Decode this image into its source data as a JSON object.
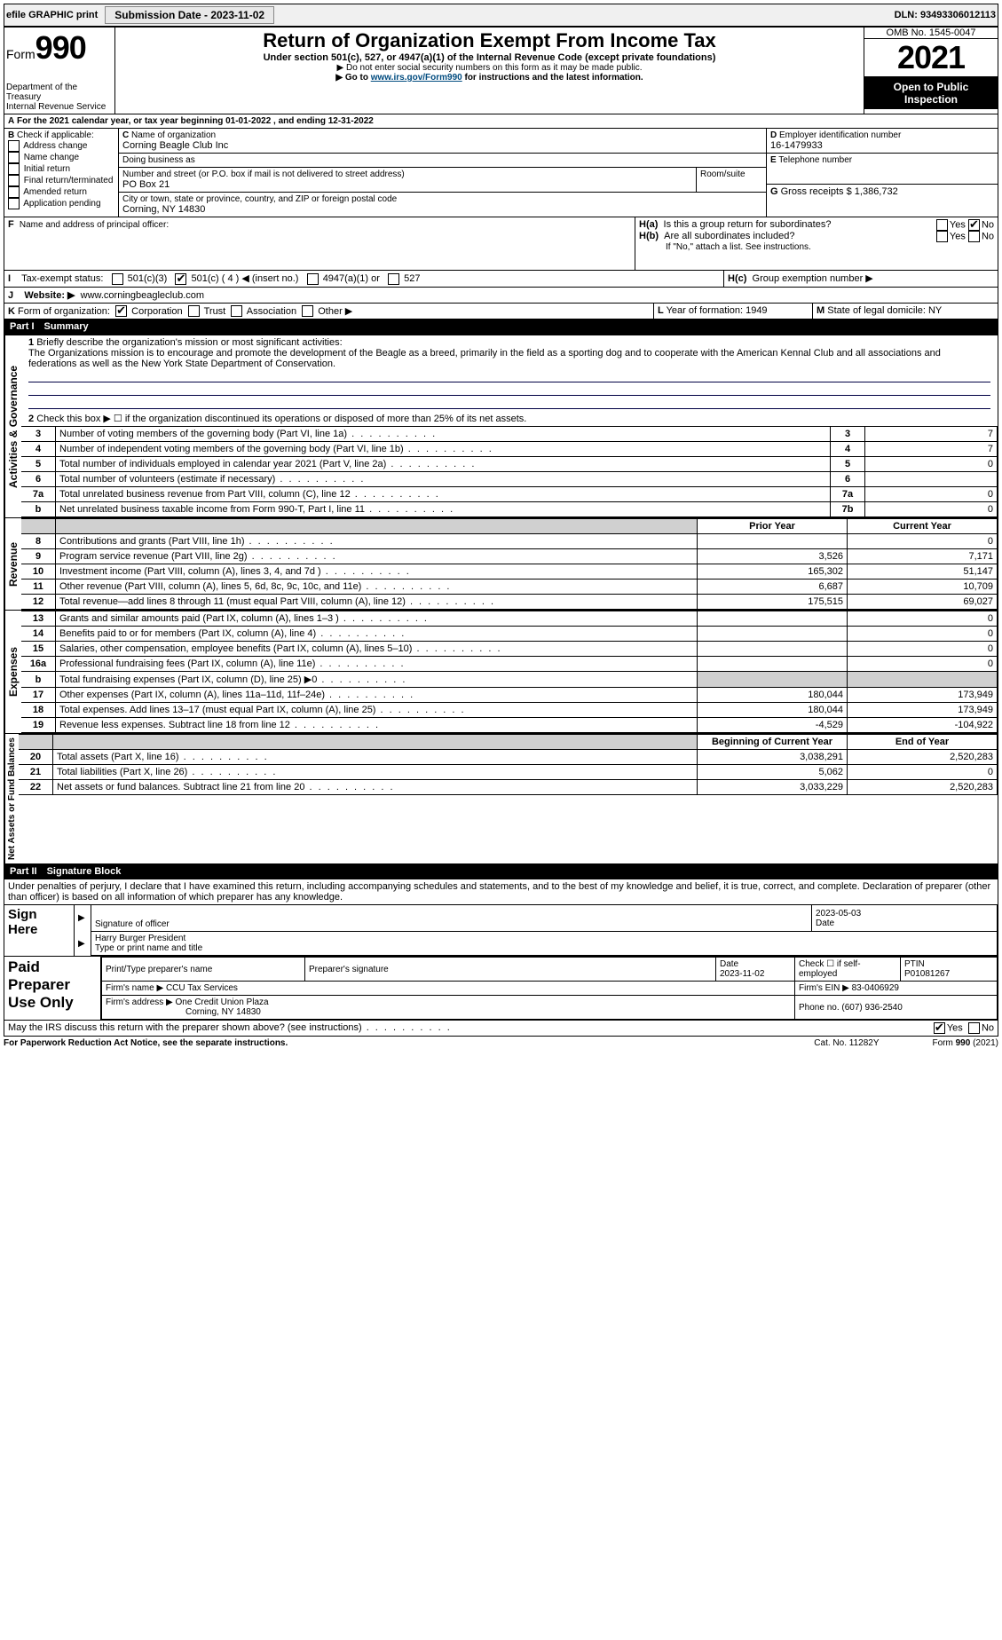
{
  "topbar": {
    "efile_label": "efile GRAPHIC print",
    "submission_label": "Submission Date - 2023-11-02",
    "dln_label": "DLN: 93493306012113"
  },
  "header": {
    "form_word": "Form",
    "form_num": "990",
    "title": "Return of Organization Exempt From Income Tax",
    "subtitle": "Under section 501(c), 527, or 4947(a)(1) of the Internal Revenue Code (except private foundations)",
    "note1": "▶ Do not enter social security numbers on this form as it may be made public.",
    "note2_pre": "▶ Go to ",
    "note2_link": "www.irs.gov/Form990",
    "note2_post": " for instructions and the latest information.",
    "dept": "Department of the Treasury\nInternal Revenue Service",
    "omb": "OMB No. 1545-0047",
    "year": "2021",
    "open": "Open to Public Inspection"
  },
  "A": {
    "text": "For the 2021 calendar year, or tax year beginning 01-01-2022   , and ending 12-31-2022"
  },
  "B": {
    "label": "Check if applicable:",
    "opts": [
      "Address change",
      "Name change",
      "Initial return",
      "Final return/terminated",
      "Amended return",
      "Application pending"
    ]
  },
  "C": {
    "name_label": "Name of organization",
    "name": "Corning Beagle Club Inc",
    "dba_label": "Doing business as",
    "dba": "",
    "addr_label": "Number and street (or P.O. box if mail is not delivered to street address)",
    "room_label": "Room/suite",
    "addr": "PO Box 21",
    "city_label": "City or town, state or province, country, and ZIP or foreign postal code",
    "city": "Corning, NY  14830"
  },
  "D": {
    "label": "Employer identification number",
    "val": "16-1479933"
  },
  "E": {
    "label": "Telephone number",
    "val": ""
  },
  "G": {
    "label": "Gross receipts $",
    "val": "1,386,732"
  },
  "F": {
    "label": "Name and address of principal officer:"
  },
  "H": {
    "a_label": "Is this a group return for subordinates?",
    "b_label": "Are all subordinates included?",
    "b_note": "If \"No,\" attach a list. See instructions.",
    "c_label": "Group exemption number ▶",
    "yes": "Yes",
    "no": "No",
    "a_no_checked": true
  },
  "I": {
    "label": "Tax-exempt status:",
    "o1": "501(c)(3)",
    "o2": "501(c) ( 4 ) ◀ (insert no.)",
    "o2_checked": true,
    "o3": "4947(a)(1) or",
    "o4": "527"
  },
  "J": {
    "label": "Website: ▶",
    "val": "www.corningbeagleclub.com"
  },
  "K": {
    "label": "Form of organization:",
    "opts": [
      "Corporation",
      "Trust",
      "Association",
      "Other ▶"
    ],
    "checked": 0
  },
  "L": {
    "label": "Year of formation:",
    "val": "1949"
  },
  "M": {
    "label": "State of legal domicile:",
    "val": "NY"
  },
  "parts": {
    "p1": "Part I",
    "p1_title": "Summary",
    "p2": "Part II",
    "p2_title": "Signature Block"
  },
  "summary": {
    "line1_label": "Briefly describe the organization's mission or most significant activities:",
    "line1_text": "The Organizations mission is to encourage and promote the development of the Beagle as a breed, primarily in the field as a sporting dog and to cooperate with the American Kennal Club and all associations and federations as well as the New York State Department of Conservation.",
    "line2": "Check this box ▶ ☐ if the organization discontinued its operations or disposed of more than 25% of its net assets.",
    "rows_gov": [
      {
        "n": "3",
        "d": "Number of voting members of the governing body (Part VI, line 1a)",
        "box": "3",
        "v": "7"
      },
      {
        "n": "4",
        "d": "Number of independent voting members of the governing body (Part VI, line 1b)",
        "box": "4",
        "v": "7"
      },
      {
        "n": "5",
        "d": "Total number of individuals employed in calendar year 2021 (Part V, line 2a)",
        "box": "5",
        "v": "0"
      },
      {
        "n": "6",
        "d": "Total number of volunteers (estimate if necessary)",
        "box": "6",
        "v": ""
      },
      {
        "n": "7a",
        "d": "Total unrelated business revenue from Part VIII, column (C), line 12",
        "box": "7a",
        "v": "0"
      },
      {
        "n": "b",
        "d": "Net unrelated business taxable income from Form 990-T, Part I, line 11",
        "box": "7b",
        "v": "0"
      }
    ],
    "col_prior": "Prior Year",
    "col_current": "Current Year",
    "rows_rev": [
      {
        "n": "8",
        "d": "Contributions and grants (Part VIII, line 1h)",
        "p": "",
        "c": "0"
      },
      {
        "n": "9",
        "d": "Program service revenue (Part VIII, line 2g)",
        "p": "3,526",
        "c": "7,171"
      },
      {
        "n": "10",
        "d": "Investment income (Part VIII, column (A), lines 3, 4, and 7d )",
        "p": "165,302",
        "c": "51,147"
      },
      {
        "n": "11",
        "d": "Other revenue (Part VIII, column (A), lines 5, 6d, 8c, 9c, 10c, and 11e)",
        "p": "6,687",
        "c": "10,709"
      },
      {
        "n": "12",
        "d": "Total revenue—add lines 8 through 11 (must equal Part VIII, column (A), line 12)",
        "p": "175,515",
        "c": "69,027"
      }
    ],
    "rows_exp": [
      {
        "n": "13",
        "d": "Grants and similar amounts paid (Part IX, column (A), lines 1–3 )",
        "p": "",
        "c": "0"
      },
      {
        "n": "14",
        "d": "Benefits paid to or for members (Part IX, column (A), line 4)",
        "p": "",
        "c": "0"
      },
      {
        "n": "15",
        "d": "Salaries, other compensation, employee benefits (Part IX, column (A), lines 5–10)",
        "p": "",
        "c": "0"
      },
      {
        "n": "16a",
        "d": "Professional fundraising fees (Part IX, column (A), line 11e)",
        "p": "",
        "c": "0"
      },
      {
        "n": "b",
        "d": "Total fundraising expenses (Part IX, column (D), line 25) ▶0",
        "p": "SHADE",
        "c": "SHADE"
      },
      {
        "n": "17",
        "d": "Other expenses (Part IX, column (A), lines 11a–11d, 11f–24e)",
        "p": "180,044",
        "c": "173,949"
      },
      {
        "n": "18",
        "d": "Total expenses. Add lines 13–17 (must equal Part IX, column (A), line 25)",
        "p": "180,044",
        "c": "173,949"
      },
      {
        "n": "19",
        "d": "Revenue less expenses. Subtract line 18 from line 12",
        "p": "-4,529",
        "c": "-104,922"
      }
    ],
    "col_boy": "Beginning of Current Year",
    "col_eoy": "End of Year",
    "rows_net": [
      {
        "n": "20",
        "d": "Total assets (Part X, line 16)",
        "p": "3,038,291",
        "c": "2,520,283"
      },
      {
        "n": "21",
        "d": "Total liabilities (Part X, line 26)",
        "p": "5,062",
        "c": "0"
      },
      {
        "n": "22",
        "d": "Net assets or fund balances. Subtract line 21 from line 20",
        "p": "3,033,229",
        "c": "2,520,283"
      }
    ],
    "side_gov": "Activities & Governance",
    "side_rev": "Revenue",
    "side_exp": "Expenses",
    "side_net": "Net Assets or Fund Balances"
  },
  "sig": {
    "penalty": "Under penalties of perjury, I declare that I have examined this return, including accompanying schedules and statements, and to the best of my knowledge and belief, it is true, correct, and complete. Declaration of preparer (other than officer) is based on all information of which preparer has any knowledge.",
    "sign_here": "Sign Here",
    "sig_officer": "Signature of officer",
    "date": "Date",
    "date_val": "2023-05-03",
    "name_title": "Harry Burger  President",
    "name_label": "Type or print name and title",
    "paid_prep": "Paid Preparer Use Only",
    "prep_name_label": "Print/Type preparer's name",
    "prep_sig_label": "Preparer's signature",
    "prep_date_label": "Date",
    "prep_date": "2023-11-02",
    "self_emp": "Check ☐ if self-employed",
    "ptin_label": "PTIN",
    "ptin": "P01081267",
    "firm_name_label": "Firm's name   ▶",
    "firm_name": "CCU Tax Services",
    "firm_ein_label": "Firm's EIN ▶",
    "firm_ein": "83-0406929",
    "firm_addr_label": "Firm's address ▶",
    "firm_addr1": "One Credit Union Plaza",
    "firm_addr2": "Corning, NY  14830",
    "phone_label": "Phone no.",
    "phone": "(607) 936-2540",
    "discuss": "May the IRS discuss this return with the preparer shown above? (see instructions)",
    "discuss_yes_checked": true
  },
  "footer": {
    "left": "For Paperwork Reduction Act Notice, see the separate instructions.",
    "mid": "Cat. No. 11282Y",
    "right": "Form 990 (2021)"
  }
}
